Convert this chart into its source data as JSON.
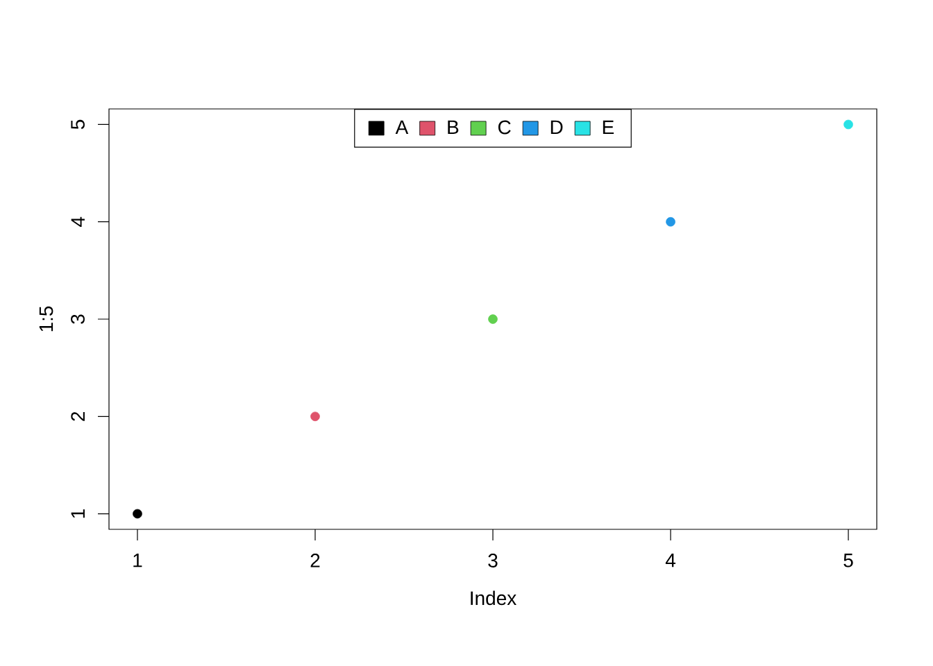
{
  "chart_data": {
    "type": "scatter",
    "xlabel": "Index",
    "ylabel": "1:5",
    "xlim": [
      0.84,
      5.16
    ],
    "ylim": [
      0.84,
      5.16
    ],
    "xticks": [
      1,
      2,
      3,
      4,
      5
    ],
    "yticks": [
      1,
      2,
      3,
      4,
      5
    ],
    "legend": "top",
    "marker": "circle",
    "grid": false,
    "series": [
      {
        "name": "A",
        "color": "#000000",
        "x": [
          1
        ],
        "values": [
          1
        ]
      },
      {
        "name": "B",
        "color": "#df536b",
        "x": [
          2
        ],
        "values": [
          2
        ]
      },
      {
        "name": "C",
        "color": "#61d04f",
        "x": [
          3
        ],
        "values": [
          3
        ]
      },
      {
        "name": "D",
        "color": "#2297e6",
        "x": [
          4
        ],
        "values": [
          4
        ]
      },
      {
        "name": "E",
        "color": "#28e2e5",
        "x": [
          5
        ],
        "values": [
          5
        ]
      }
    ]
  }
}
